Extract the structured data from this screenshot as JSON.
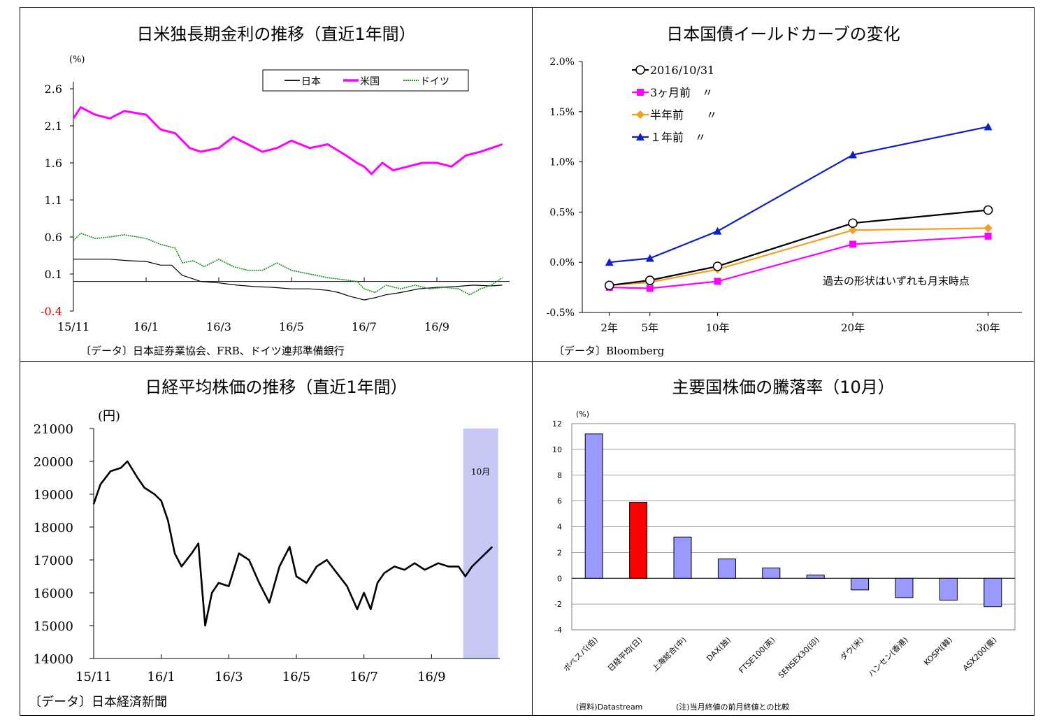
{
  "charts": [
    {
      "title": "日米独長期金利の推移（直近1年間）",
      "source": "〔データ〕日本証券業協会、FRB、ドイツ連邦準備銀行",
      "chart_data": {
        "type": "line",
        "unit_label": "(%)",
        "ylim": [
          -0.4,
          2.6
        ],
        "y_ticks": [
          "2.6",
          "2.1",
          "1.6",
          "1.1",
          "0.6",
          "0.1",
          "-0.4"
        ],
        "x_ticks": [
          "15/11",
          "16/1",
          "16/3",
          "16/5",
          "16/7",
          "16/9"
        ],
        "x_tick_pos": [
          0,
          2,
          4,
          6,
          8,
          10
        ],
        "xlim": [
          0,
          12
        ],
        "grid": false,
        "legend_position": "top-right",
        "series": [
          {
            "name": "日本",
            "color": "#000000",
            "x": [
              0,
              0.5,
              1,
              1.5,
              2,
              2.4,
              2.7,
              3,
              3.2,
              3.5,
              4,
              4.5,
              5,
              5.5,
              6,
              6.5,
              7,
              7.3,
              7.6,
              8,
              8.3,
              8.6,
              9,
              9.5,
              10,
              10.5,
              11,
              11.5,
              11.8
            ],
            "values": [
              0.3,
              0.3,
              0.3,
              0.28,
              0.27,
              0.22,
              0.22,
              0.08,
              0.05,
              0.0,
              -0.02,
              -0.05,
              -0.07,
              -0.08,
              -0.1,
              -0.1,
              -0.12,
              -0.15,
              -0.2,
              -0.25,
              -0.22,
              -0.18,
              -0.15,
              -0.1,
              -0.08,
              -0.07,
              -0.05,
              -0.06,
              -0.05
            ]
          },
          {
            "name": "米国",
            "color": "#ff00ff",
            "x": [
              0,
              0.2,
              0.6,
              1,
              1.4,
              2,
              2.4,
              2.8,
              3.2,
              3.5,
              4,
              4.4,
              4.8,
              5.2,
              5.6,
              6,
              6.5,
              7,
              7.5,
              7.8,
              8,
              8.2,
              8.5,
              8.8,
              9.2,
              9.6,
              10,
              10.4,
              10.8,
              11.2,
              11.5,
              11.8
            ],
            "values": [
              2.2,
              2.35,
              2.25,
              2.2,
              2.3,
              2.25,
              2.05,
              2.0,
              1.8,
              1.75,
              1.8,
              1.95,
              1.85,
              1.75,
              1.8,
              1.9,
              1.8,
              1.85,
              1.7,
              1.6,
              1.55,
              1.45,
              1.6,
              1.5,
              1.55,
              1.6,
              1.6,
              1.55,
              1.7,
              1.75,
              1.8,
              1.85
            ]
          },
          {
            "name": "ドイツ",
            "color": "#1f8a1f",
            "x": [
              0,
              0.2,
              0.6,
              1,
              1.4,
              2,
              2.4,
              2.8,
              3,
              3.3,
              3.6,
              4,
              4.4,
              4.8,
              5.2,
              5.6,
              6,
              6.5,
              7,
              7.5,
              7.8,
              8,
              8.3,
              8.6,
              9,
              9.4,
              9.8,
              10.2,
              10.6,
              10.9,
              11.2,
              11.5,
              11.8
            ],
            "values": [
              0.55,
              0.65,
              0.58,
              0.6,
              0.63,
              0.58,
              0.5,
              0.45,
              0.25,
              0.28,
              0.2,
              0.3,
              0.2,
              0.15,
              0.15,
              0.25,
              0.15,
              0.1,
              0.05,
              0.02,
              0.0,
              -0.1,
              -0.15,
              -0.05,
              -0.1,
              -0.05,
              -0.1,
              -0.08,
              -0.1,
              -0.18,
              -0.1,
              -0.05,
              0.05
            ]
          }
        ]
      }
    },
    {
      "title": "日本国債イールドカーブの変化",
      "source": "〔データ〕Bloomberg",
      "note": "過去の形状はいずれも月末時点",
      "chart_data": {
        "type": "line",
        "ylim": [
          -0.5,
          2.0
        ],
        "y_ticks": [
          "2.0%",
          "1.5%",
          "1.0%",
          "0.5%",
          "0.0%",
          "-0.5%"
        ],
        "y_tick_values": [
          2.0,
          1.5,
          1.0,
          0.5,
          0.0,
          -0.5
        ],
        "categories": [
          "2年",
          "5年",
          "10年",
          "20年",
          "30年"
        ],
        "x": [
          2,
          5,
          10,
          20,
          30
        ],
        "grid": false,
        "legend_position": "top-left",
        "series": [
          {
            "name": "2016/10/31",
            "color": "#000000",
            "marker": "circle-open",
            "values": [
              -0.23,
              -0.18,
              -0.04,
              0.39,
              0.52
            ]
          },
          {
            "name": "3ヶ月前　〃",
            "color": "#ff00ff",
            "marker": "square",
            "values": [
              -0.25,
              -0.26,
              -0.19,
              0.18,
              0.26
            ]
          },
          {
            "name": "半年前　　〃",
            "color": "#f0a020",
            "marker": "diamond",
            "values": [
              -0.23,
              -0.2,
              -0.07,
              0.32,
              0.34
            ]
          },
          {
            "name": "１年前　〃",
            "color": "#1020c0",
            "marker": "triangle",
            "values": [
              0.0,
              0.04,
              0.31,
              1.07,
              1.35
            ]
          }
        ]
      }
    },
    {
      "title": "日経平均株価の推移（直近1年間）",
      "source": "〔データ〕日本経済新聞",
      "chart_data": {
        "type": "line",
        "unit_label": "(円)",
        "ylim": [
          14000,
          21000
        ],
        "y_ticks": [
          "21000",
          "20000",
          "19000",
          "18000",
          "17000",
          "16000",
          "15000",
          "14000"
        ],
        "y_tick_values": [
          21000,
          20000,
          19000,
          18000,
          17000,
          16000,
          15000,
          14000
        ],
        "x_ticks": [
          "15/11",
          "16/1",
          "16/3",
          "16/5",
          "16/7",
          "16/9"
        ],
        "x_tick_pos": [
          0,
          2,
          4,
          6,
          8,
          10
        ],
        "xlim": [
          0,
          12
        ],
        "grid": false,
        "shaded_band": {
          "label": "10月",
          "x_start": 11,
          "x_end": 12
        },
        "series": [
          {
            "name": "",
            "color": "#000000",
            "x": [
              0,
              0.2,
              0.5,
              0.8,
              1,
              1.3,
              1.5,
              1.8,
              2,
              2.2,
              2.4,
              2.6,
              2.9,
              3.1,
              3.3,
              3.5,
              3.7,
              4,
              4.3,
              4.6,
              4.9,
              5.2,
              5.5,
              5.8,
              6,
              6.3,
              6.6,
              6.9,
              7.2,
              7.5,
              7.8,
              8,
              8.2,
              8.4,
              8.6,
              8.9,
              9.2,
              9.5,
              9.8,
              10,
              10.2,
              10.5,
              10.8,
              11,
              11.2,
              11.4,
              11.6,
              11.8
            ],
            "values": [
              18700,
              19300,
              19700,
              19800,
              20000,
              19500,
              19200,
              19000,
              18800,
              18200,
              17200,
              16800,
              17200,
              17500,
              15000,
              16000,
              16300,
              16200,
              17200,
              17000,
              16300,
              15700,
              16800,
              17400,
              16500,
              16300,
              16800,
              17000,
              16600,
              16200,
              15500,
              16000,
              15500,
              16300,
              16600,
              16800,
              16700,
              16900,
              16700,
              16800,
              16900,
              16800,
              16800,
              16500,
              16800,
              17000,
              17200,
              17400
            ]
          }
        ]
      }
    },
    {
      "title": "主要国株価の騰落率（10月）",
      "source": "(資料)Datastream",
      "note": "(注)当月終値の前月終値との比較",
      "chart_data": {
        "type": "bar",
        "unit_label": "(%)",
        "ylim": [
          -4,
          12
        ],
        "y_ticks": [
          "12",
          "10",
          "8",
          "6",
          "4",
          "2",
          "0",
          "-2",
          "-4"
        ],
        "y_tick_values": [
          12,
          10,
          8,
          6,
          4,
          2,
          0,
          -2,
          -4
        ],
        "grid": true,
        "categories": [
          "ボベスパ(伯)",
          "日経平均(日)",
          "上海総合(中)",
          "DAX(独)",
          "FTSE100(英)",
          "SENSEX30(印)",
          "ダウ(米)",
          "ハンセン(香港)",
          "KOSPI(韓)",
          "ASX200(豪)"
        ],
        "values": [
          11.2,
          5.9,
          3.2,
          1.5,
          0.8,
          0.25,
          -0.9,
          -1.5,
          -1.7,
          -2.2
        ],
        "colors": [
          "#9999ff",
          "#ff0000",
          "#9999ff",
          "#9999ff",
          "#9999ff",
          "#9999ff",
          "#9999ff",
          "#9999ff",
          "#9999ff",
          "#9999ff"
        ]
      }
    }
  ]
}
